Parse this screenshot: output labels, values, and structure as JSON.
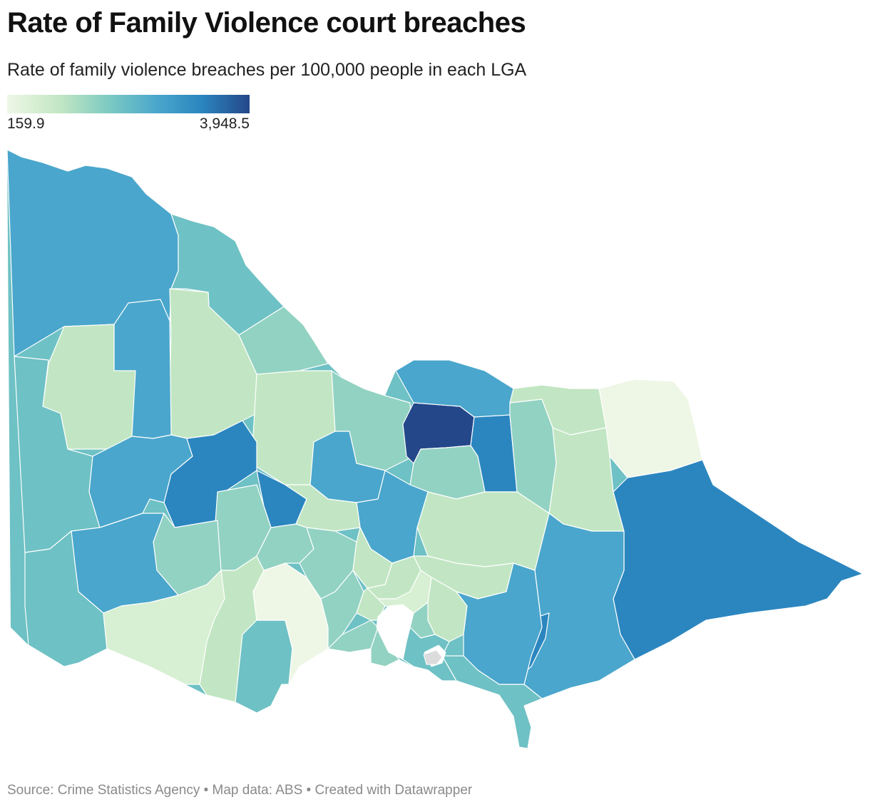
{
  "header": {
    "title": "Rate of Family Violence court breaches",
    "subtitle": "Rate of family violence breaches per 100,000 people in each LGA"
  },
  "legend": {
    "min_label": "159.9",
    "max_label": "3,948.5",
    "min_value": 159.9,
    "max_value": 3948.5,
    "colors": [
      "#eef7e6",
      "#c2e6c3",
      "#7ccac2",
      "#4aa6cc",
      "#2b86bf",
      "#24478a"
    ]
  },
  "map": {
    "region": "Victoria, Australia",
    "unit": "Local Government Areas",
    "palette": {
      "very_low": "#eef7e6",
      "low": "#c2e6c3",
      "mid_low": "#92d2c2",
      "mid": "#6ec1c4",
      "mid_high": "#4aa6cc",
      "high": "#2b86bf",
      "highest": "#24478a",
      "no_data": "#dcdcdc"
    }
  },
  "footer": {
    "source": "Source: Crime Statistics Agency • Map data: ABS • Created with Datawrapper"
  }
}
